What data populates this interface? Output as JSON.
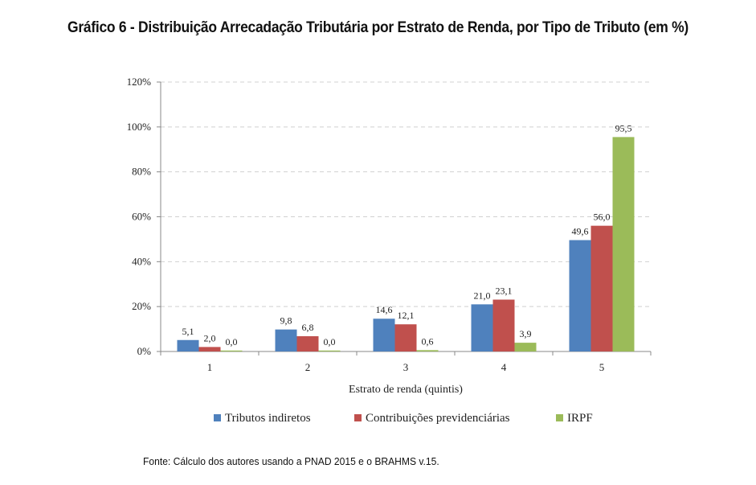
{
  "title": "Gráfico 6 - Distribuição Arrecadação Tributária por Estrato de Renda, por Tipo de Tributo (em %)",
  "source": "Fonte: Cálculo dos autores usando a PNAD 2015 e o BRAHMS v.15.",
  "chart_data": {
    "type": "bar",
    "categories": [
      "1",
      "2",
      "3",
      "4",
      "5"
    ],
    "series": [
      {
        "name": "Tributos indiretos",
        "color": "#4f81bd",
        "values": [
          5.1,
          9.8,
          14.6,
          21.0,
          49.6
        ],
        "labels": [
          "5,1",
          "9,8",
          "14,6",
          "21,0",
          "49,6"
        ]
      },
      {
        "name": "Contribuições previdenciárias",
        "color": "#c0504d",
        "values": [
          2.0,
          6.8,
          12.1,
          23.1,
          56.0
        ],
        "labels": [
          "2,0",
          "6,8",
          "12,1",
          "23,1",
          "56,0"
        ]
      },
      {
        "name": "IRPF",
        "color": "#9bbb59",
        "values": [
          0.0,
          0.0,
          0.6,
          3.9,
          95.5
        ],
        "labels": [
          "0,0",
          "0,0",
          "0,6",
          "3,9",
          "95,5"
        ]
      }
    ],
    "xlabel": "Estrato de renda (quintis)",
    "ylabel": "",
    "ylim": [
      0,
      120
    ],
    "yticks": [
      "0%",
      "20%",
      "40%",
      "60%",
      "80%",
      "100%",
      "120%"
    ],
    "grid": true,
    "legend_position": "bottom"
  }
}
